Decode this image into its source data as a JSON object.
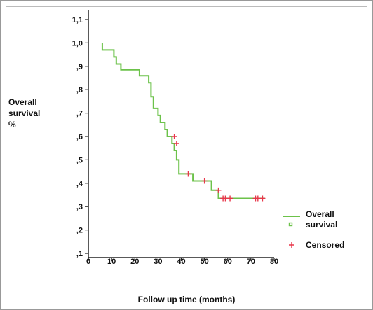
{
  "chart_data": {
    "type": "line",
    "title": "",
    "ylabel": "Overall survival %",
    "ylabel_lines": [
      "Overall",
      "survival",
      "%"
    ],
    "xlabel": "Follow up time (months)",
    "xlim": [
      0,
      80
    ],
    "ylim": [
      0.1,
      1.1
    ],
    "xticks": [
      "0",
      "10",
      "20",
      "30",
      "40",
      "50",
      "60",
      "70",
      "80"
    ],
    "yticks": [
      ",1",
      ",2",
      ",3",
      ",4",
      ",5",
      ",6",
      ",7",
      ",8",
      ",9",
      "1,0",
      "1,1"
    ],
    "grid": false,
    "legend_position": "right",
    "series": [
      {
        "name": "Overall survival",
        "step": [
          [
            6,
            1.0
          ],
          [
            6,
            0.97
          ],
          [
            11,
            0.97
          ],
          [
            11,
            0.94
          ],
          [
            12,
            0.94
          ],
          [
            12,
            0.91
          ],
          [
            14,
            0.91
          ],
          [
            14,
            0.885
          ],
          [
            22,
            0.885
          ],
          [
            22,
            0.86
          ],
          [
            26,
            0.86
          ],
          [
            26,
            0.83
          ],
          [
            27,
            0.83
          ],
          [
            27,
            0.77
          ],
          [
            28,
            0.77
          ],
          [
            28,
            0.72
          ],
          [
            30,
            0.72
          ],
          [
            30,
            0.69
          ],
          [
            31,
            0.69
          ],
          [
            31,
            0.66
          ],
          [
            33,
            0.66
          ],
          [
            33,
            0.63
          ],
          [
            34,
            0.63
          ],
          [
            34,
            0.6
          ],
          [
            36,
            0.6
          ],
          [
            36,
            0.57
          ],
          [
            37,
            0.57
          ],
          [
            37,
            0.54
          ],
          [
            38,
            0.54
          ],
          [
            38,
            0.5
          ],
          [
            39,
            0.5
          ],
          [
            39,
            0.44
          ],
          [
            45,
            0.44
          ],
          [
            45,
            0.41
          ],
          [
            53,
            0.41
          ],
          [
            53,
            0.37
          ],
          [
            56,
            0.37
          ],
          [
            56,
            0.335
          ],
          [
            76,
            0.335
          ]
        ]
      },
      {
        "name": "Censored",
        "points": [
          [
            37,
            0.6
          ],
          [
            38,
            0.57
          ],
          [
            43,
            0.44
          ],
          [
            50,
            0.41
          ],
          [
            56,
            0.37
          ],
          [
            58,
            0.335
          ],
          [
            59,
            0.335
          ],
          [
            61,
            0.335
          ],
          [
            72,
            0.335
          ],
          [
            73,
            0.335
          ],
          [
            75,
            0.335
          ]
        ]
      }
    ],
    "legend": [
      {
        "label": "Overall survival",
        "label_lines": [
          "Overall",
          "survival"
        ],
        "marker": "line+square"
      },
      {
        "label": "Censored",
        "marker": "plus"
      }
    ],
    "colors": {
      "survival": "#6cc24a",
      "censored": "#e8364a",
      "axis": "#222222"
    }
  }
}
